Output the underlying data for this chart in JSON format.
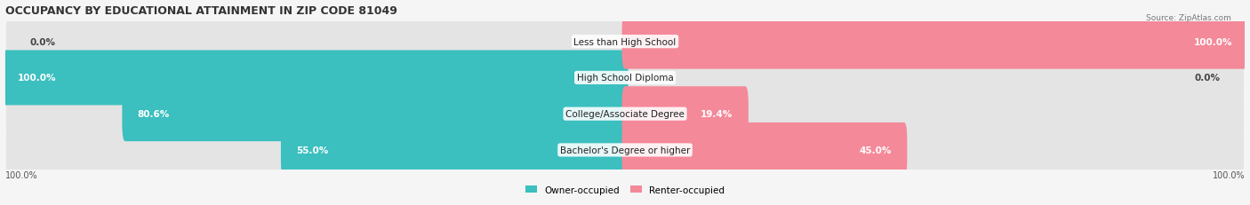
{
  "title": "OCCUPANCY BY EDUCATIONAL ATTAINMENT IN ZIP CODE 81049",
  "source": "Source: ZipAtlas.com",
  "categories": [
    "Less than High School",
    "High School Diploma",
    "College/Associate Degree",
    "Bachelor's Degree or higher"
  ],
  "owner_pct": [
    0.0,
    100.0,
    80.6,
    55.0
  ],
  "renter_pct": [
    100.0,
    0.0,
    19.4,
    45.0
  ],
  "owner_color": "#3bbfbf",
  "renter_color": "#f48999",
  "bar_bg_color": "#e4e4e4",
  "fig_bg_color": "#f5f5f5",
  "title_fontsize": 9,
  "label_fontsize": 7.5,
  "bar_height": 0.52
}
